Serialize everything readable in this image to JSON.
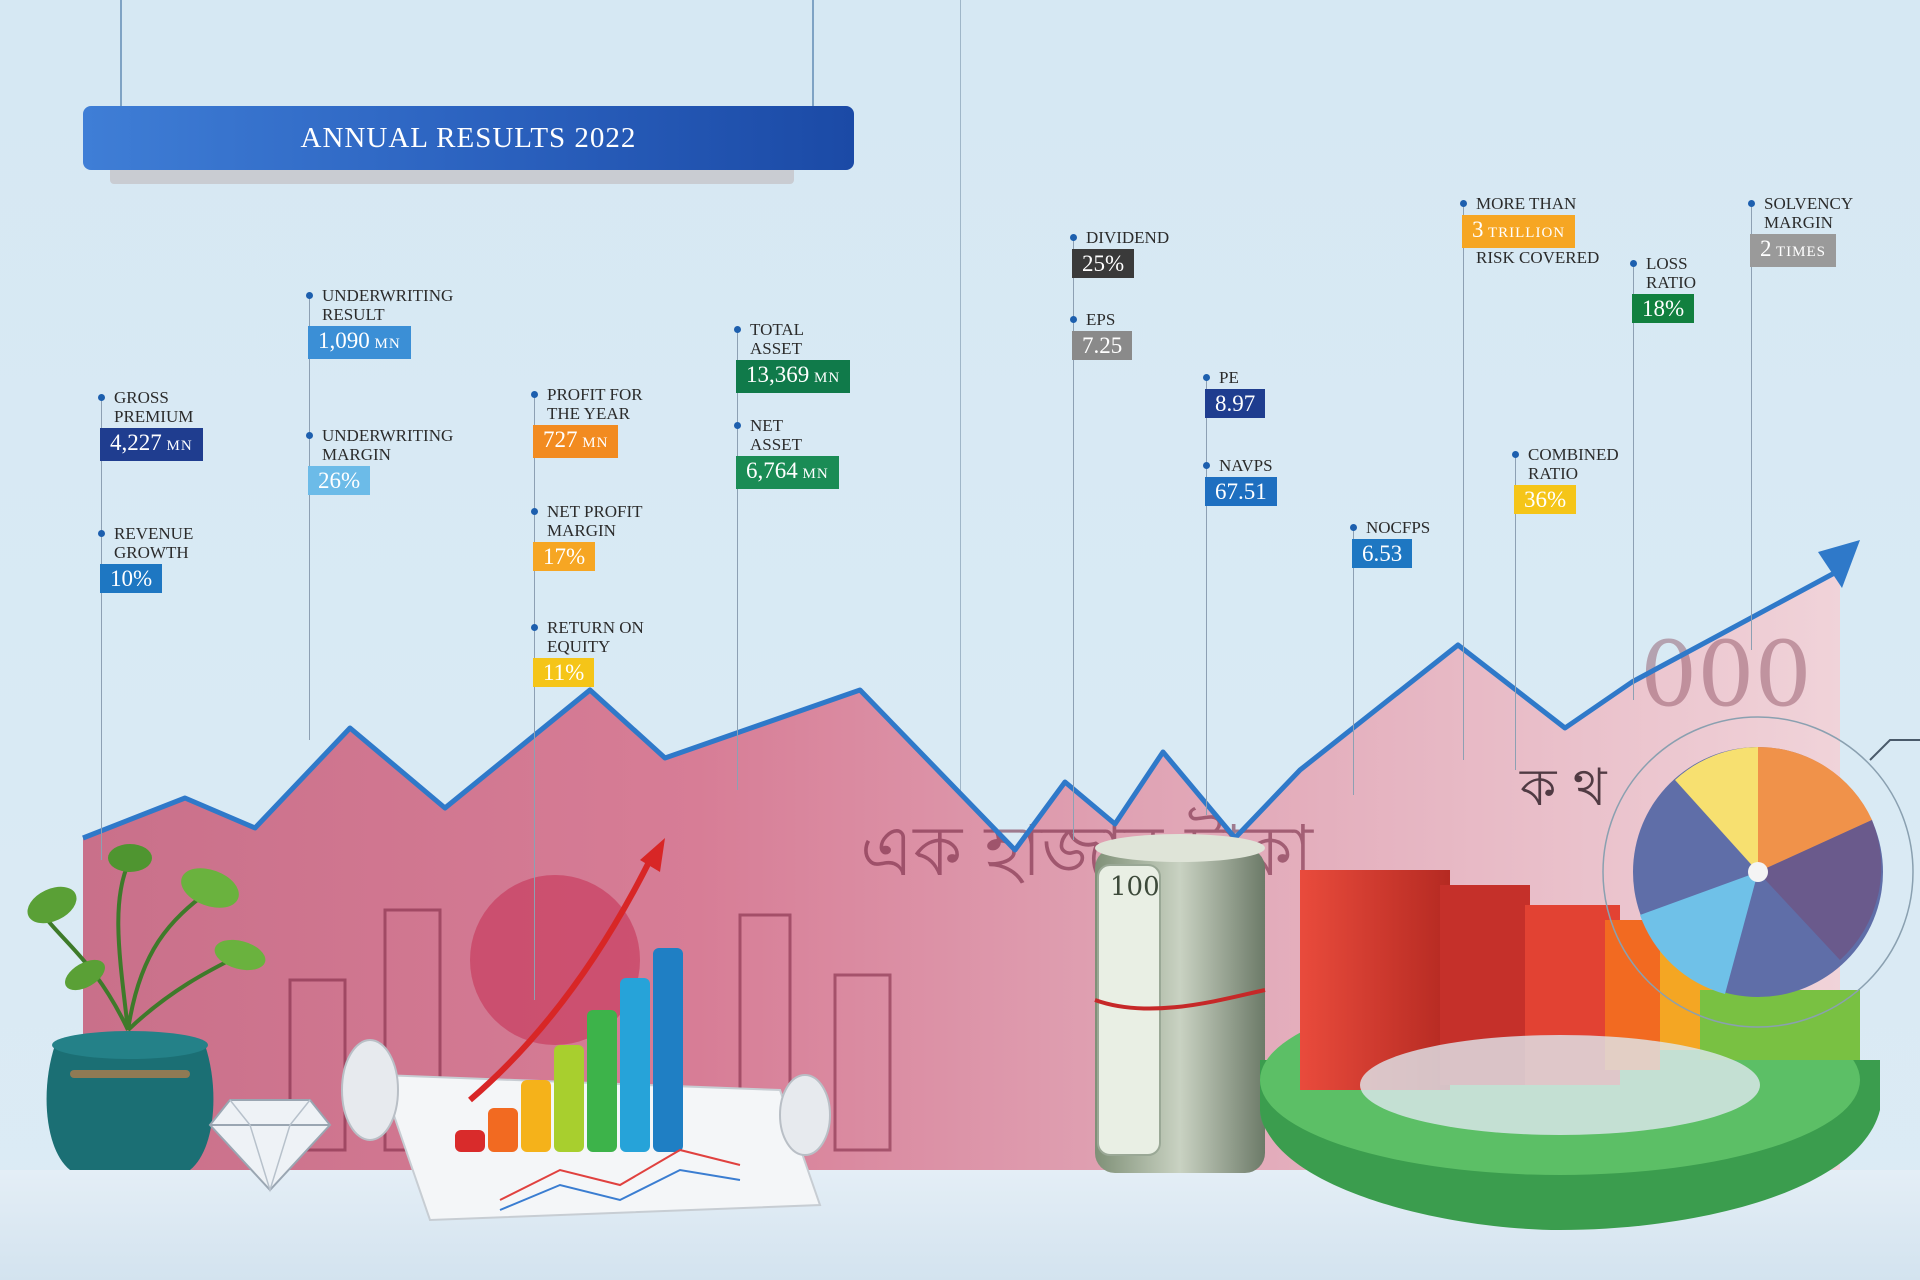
{
  "banner": {
    "title": "ANNUAL RESULTS 2022"
  },
  "metrics": [
    {
      "id": "gross-premium",
      "label": "GROSS\nPREMIUM",
      "value": "4,227",
      "unit": "MN",
      "color": "#1f3d8f"
    },
    {
      "id": "revenue-growth",
      "label": "REVENUE\nGROWTH",
      "value": "10%",
      "unit": "",
      "color": "#1e77c2"
    },
    {
      "id": "underwriting-result",
      "label": "UNDERWRITING\nRESULT",
      "value": "1,090",
      "unit": "MN",
      "color": "#3b8fd6"
    },
    {
      "id": "underwriting-margin",
      "label": "UNDERWRITING\nMARGIN",
      "value": "26%",
      "unit": "",
      "color": "#6cbbe8"
    },
    {
      "id": "profit-for-year",
      "label": "PROFIT FOR\nTHE YEAR",
      "value": "727",
      "unit": "MN",
      "color": "#f28b20"
    },
    {
      "id": "net-profit-margin",
      "label": "NET PROFIT\nMARGIN",
      "value": "17%",
      "unit": "",
      "color": "#f6a623"
    },
    {
      "id": "return-on-equity",
      "label": "RETURN ON\nEQUITY",
      "value": "11%",
      "unit": "",
      "color": "#f5c518"
    },
    {
      "id": "total-asset",
      "label": "TOTAL\nASSET",
      "value": "13,369",
      "unit": "MN",
      "color": "#107a4a"
    },
    {
      "id": "net-asset",
      "label": "NET\nASSET",
      "value": "6,764",
      "unit": "MN",
      "color": "#1a8c55"
    },
    {
      "id": "dividend",
      "label": "DIVIDEND",
      "value": "25%",
      "unit": "",
      "color": "#3a3a3a"
    },
    {
      "id": "eps",
      "label": "EPS",
      "value": "7.25",
      "unit": "",
      "color": "#8a8a8a"
    },
    {
      "id": "pe",
      "label": "PE",
      "value": "8.97",
      "unit": "",
      "color": "#1f3d8f"
    },
    {
      "id": "navps",
      "label": "NAVPS",
      "value": "67.51",
      "unit": "",
      "color": "#1e6fc0"
    },
    {
      "id": "nocfps",
      "label": "NOCFPS",
      "value": "6.53",
      "unit": "",
      "color": "#1e77c2"
    },
    {
      "id": "risk-covered",
      "label": "MORE THAN",
      "value": "3",
      "unit": "TRILLION",
      "color": "#f6a623",
      "label_after": "RISK COVERED"
    },
    {
      "id": "combined-ratio",
      "label": "COMBINED\nRATIO",
      "value": "36%",
      "unit": "",
      "color": "#f5c518"
    },
    {
      "id": "loss-ratio",
      "label": "LOSS\nRATIO",
      "value": "18%",
      "unit": "",
      "color": "#11803f"
    },
    {
      "id": "solvency-margin",
      "label": "SOLVENCY\nMARGIN",
      "value": "2",
      "unit": "TIMES",
      "color": "#9a9a9a"
    }
  ]
}
